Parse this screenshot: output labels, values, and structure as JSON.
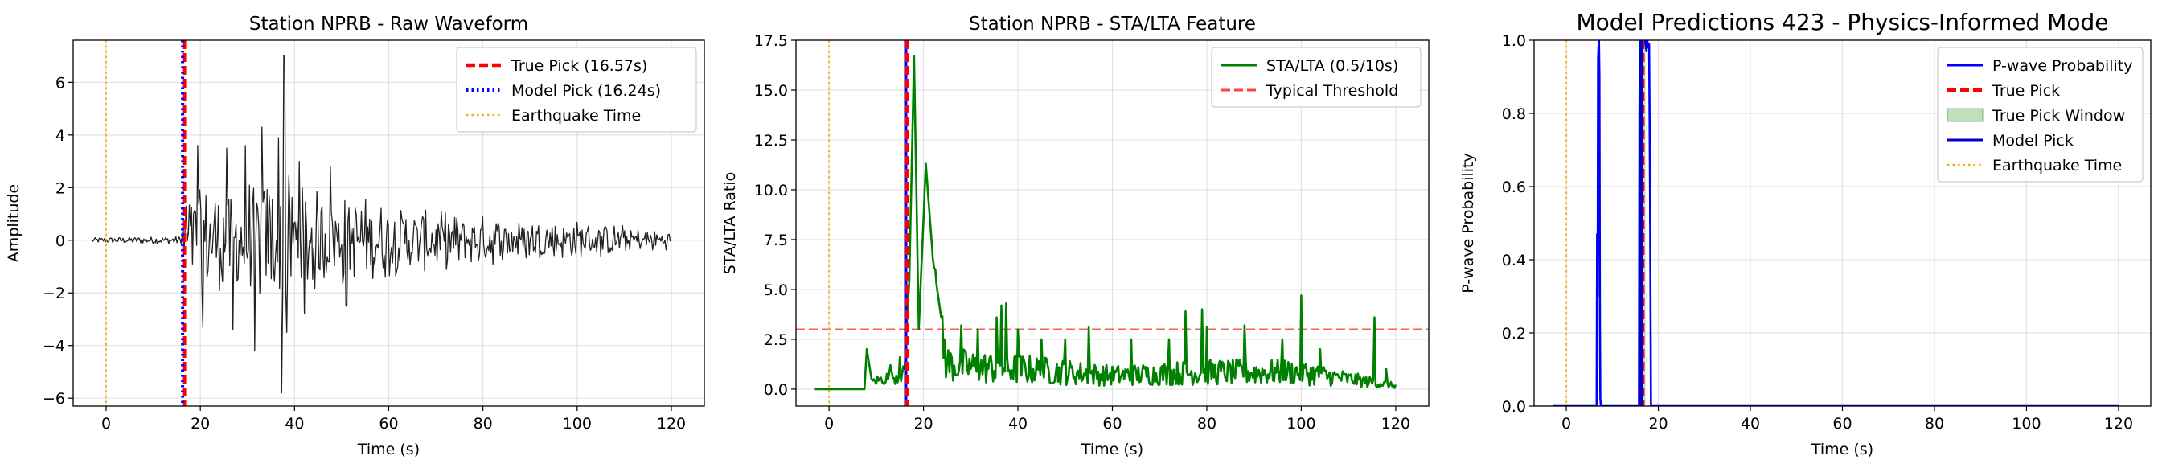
{
  "chart_data": [
    {
      "type": "line",
      "title": "Station NPRB - Raw Waveform",
      "xlabel": "Time (s)",
      "ylabel": "Amplitude",
      "xlim": [
        -7,
        127
      ],
      "ylim": [
        -6.3,
        7.6
      ],
      "xticks": [
        0,
        20,
        40,
        60,
        80,
        100,
        120
      ],
      "yticks": [
        -6,
        -4,
        -2,
        0,
        2,
        4,
        6
      ],
      "xtick_labels": [
        "0",
        "20",
        "40",
        "60",
        "80",
        "100",
        "120"
      ],
      "ytick_labels": [
        "−6",
        "−4",
        "−2",
        "0",
        "2",
        "4",
        "6"
      ],
      "grid": true,
      "legend_position": "top-right",
      "legend": [
        {
          "label": "True Pick (16.57s)",
          "color": "#ff0000",
          "style": "dashed"
        },
        {
          "label": "Model Pick (16.24s)",
          "color": "#0000ff",
          "style": "dotted"
        },
        {
          "label": "Earthquake Time",
          "color": "#ffa500",
          "style": "dotted"
        }
      ],
      "vlines": [
        {
          "x": 16.57,
          "color": "#ff0000",
          "style": "dashed"
        },
        {
          "x": 16.24,
          "color": "#0000ff",
          "style": "dotted"
        },
        {
          "x": 0,
          "color": "#ffa500",
          "style": "dotted"
        }
      ],
      "series": [
        {
          "color": "#222222",
          "style": "noise",
          "x_start": -3,
          "x_end": 120,
          "envelope": [
            [
              -3,
              0.1
            ],
            [
              16,
              0.15
            ],
            [
              16.5,
              2.2
            ],
            [
              20,
              2.3
            ],
            [
              25,
              2.3
            ],
            [
              30,
              2.4
            ],
            [
              35,
              2.6
            ],
            [
              38,
              3.0
            ],
            [
              40,
              2.3
            ],
            [
              50,
              1.9
            ],
            [
              60,
              1.5
            ],
            [
              70,
              1.2
            ],
            [
              80,
              1.0
            ],
            [
              90,
              0.9
            ],
            [
              100,
              0.8
            ],
            [
              110,
              0.6
            ],
            [
              120,
              0.35
            ]
          ],
          "spikes": [
            [
              19.5,
              3.6
            ],
            [
              20.5,
              -3.3
            ],
            [
              25.5,
              3.5
            ],
            [
              27,
              -3.4
            ],
            [
              29.5,
              3.6
            ],
            [
              31.5,
              -4.2
            ],
            [
              33,
              4.3
            ],
            [
              36.5,
              3.9
            ],
            [
              37.2,
              -5.8
            ],
            [
              37.8,
              7.0
            ],
            [
              38.4,
              -3.5
            ],
            [
              41,
              3.0
            ],
            [
              42,
              -2.8
            ],
            [
              47.5,
              2.8
            ],
            [
              51,
              -2.5
            ]
          ]
        }
      ]
    },
    {
      "type": "line",
      "title": "Station NPRB - STA/LTA Feature",
      "xlabel": "Time (s)",
      "ylabel": "STA/LTA Ratio",
      "xlim": [
        -7,
        127
      ],
      "ylim": [
        -0.85,
        17.5
      ],
      "xticks": [
        0,
        20,
        40,
        60,
        80,
        100,
        120
      ],
      "yticks": [
        0,
        2.5,
        5,
        7.5,
        10,
        12.5,
        15,
        17.5
      ],
      "xtick_labels": [
        "0",
        "20",
        "40",
        "60",
        "80",
        "100",
        "120"
      ],
      "ytick_labels": [
        "0.0",
        "2.5",
        "5.0",
        "7.5",
        "10.0",
        "12.5",
        "15.0",
        "17.5"
      ],
      "grid": true,
      "legend_position": "top-right",
      "legend": [
        {
          "label": "STA/LTA (0.5/10s)",
          "color": "#008000",
          "style": "solid"
        },
        {
          "label": "Typical Threshold",
          "color": "#ff4040",
          "style": "dashed"
        }
      ],
      "hlines": [
        {
          "y": 3.0,
          "color": "#ff4040",
          "style": "dashed"
        }
      ],
      "vlines": [
        {
          "x": 0,
          "color": "#ffa500",
          "style": "dotted"
        },
        {
          "x": 16.24,
          "color": "#0000ff",
          "style": "solid"
        },
        {
          "x": 16.57,
          "color": "#ff0000",
          "style": "dashed"
        }
      ],
      "series": [
        {
          "name": "STA/LTA (0.5/10s)",
          "color": "#008000",
          "style": "spiky",
          "x_start": -3,
          "x_end": 120,
          "baseline": [
            [
              -3,
              0
            ],
            [
              7.5,
              0
            ],
            [
              8,
              2.0
            ],
            [
              9,
              0.5
            ],
            [
              16,
              1.0
            ],
            [
              16.4,
              3.0
            ],
            [
              17,
              5.5
            ],
            [
              18,
              16.7
            ],
            [
              19,
              3.0
            ],
            [
              20.5,
              11.3
            ],
            [
              22,
              6.5
            ],
            [
              25,
              1.5
            ],
            [
              30,
              1.3
            ],
            [
              40,
              1.2
            ],
            [
              60,
              0.8
            ],
            [
              80,
              1.0
            ],
            [
              100,
              1.0
            ],
            [
              120,
              0.2
            ]
          ],
          "spikes": [
            [
              13,
              1.2
            ],
            [
              15,
              1.6
            ],
            [
              22.5,
              6.0
            ],
            [
              28,
              3.2
            ],
            [
              31.5,
              3.0
            ],
            [
              35.5,
              3.6
            ],
            [
              36.5,
              4.2
            ],
            [
              37.5,
              4.3
            ],
            [
              40,
              3.0
            ],
            [
              45,
              2.5
            ],
            [
              50,
              2.5
            ],
            [
              55,
              3.1
            ],
            [
              64,
              2.5
            ],
            [
              72,
              2.5
            ],
            [
              75.5,
              3.9
            ],
            [
              79,
              4.0
            ],
            [
              80,
              3.1
            ],
            [
              88,
              3.2
            ],
            [
              96,
              2.5
            ],
            [
              100,
              4.7
            ],
            [
              104,
              2.0
            ],
            [
              115.5,
              3.6
            ],
            [
              118,
              1.0
            ]
          ]
        }
      ]
    },
    {
      "type": "line",
      "title": "Model Predictions 423 - Physics-Informed Mode",
      "xlabel": "Time (s)",
      "ylabel": "P-wave Probability",
      "xlim": [
        -7,
        127
      ],
      "ylim": [
        0,
        1
      ],
      "xticks": [
        0,
        20,
        40,
        60,
        80,
        100,
        120
      ],
      "yticks": [
        0,
        0.2,
        0.4,
        0.6,
        0.8,
        1.0
      ],
      "xtick_labels": [
        "0",
        "20",
        "40",
        "60",
        "80",
        "100",
        "120"
      ],
      "ytick_labels": [
        "0.0",
        "0.2",
        "0.4",
        "0.6",
        "0.8",
        "1.0"
      ],
      "grid": true,
      "legend_position": "top-right",
      "legend": [
        {
          "label": "P-wave Probability",
          "color": "#0000ff",
          "style": "solid"
        },
        {
          "label": "True Pick",
          "color": "#ff0000",
          "style": "dashed"
        },
        {
          "label": "True Pick Window",
          "color": "#008000",
          "style": "patch"
        },
        {
          "label": "Model Pick",
          "color": "#0000cc",
          "style": "solid"
        },
        {
          "label": "Earthquake Time",
          "color": "#ffa500",
          "style": "dotted"
        }
      ],
      "shaded_window": {
        "x0": 16.0,
        "x1": 17.2,
        "color": "#008000",
        "alpha": 0.25
      },
      "vlines": [
        {
          "x": 0,
          "color": "#ffa500",
          "style": "dotted"
        },
        {
          "x": 16.57,
          "color": "#ff0000",
          "style": "dashed"
        },
        {
          "x": 16.24,
          "color": "#0000cc",
          "style": "solid"
        }
      ],
      "series": [
        {
          "name": "P-wave Probability",
          "color": "#0000ff",
          "x": [
            -3,
            6.6,
            6.7,
            6.8,
            6.9,
            7.0,
            7.1,
            7.2,
            7.3,
            7.4,
            7.5,
            15.8,
            15.9,
            16.0,
            16.1,
            16.2,
            16.3,
            16.4,
            16.5,
            16.6,
            16.7,
            16.8,
            17.0,
            17.2,
            17.4,
            17.6,
            17.8,
            18.0,
            18.2,
            18.4,
            120
          ],
          "y": [
            0,
            0,
            0.47,
            0.3,
            0.95,
            0.98,
            1.0,
            0.9,
            0.25,
            0.02,
            0,
            0,
            0.8,
            1.0,
            0.98,
            0.99,
            1.0,
            0.97,
            0.99,
            1.0,
            0.98,
            1.0,
            0.99,
            1.0,
            0.97,
            1.0,
            0.98,
            0.99,
            0.6,
            0,
            0
          ]
        }
      ]
    }
  ]
}
